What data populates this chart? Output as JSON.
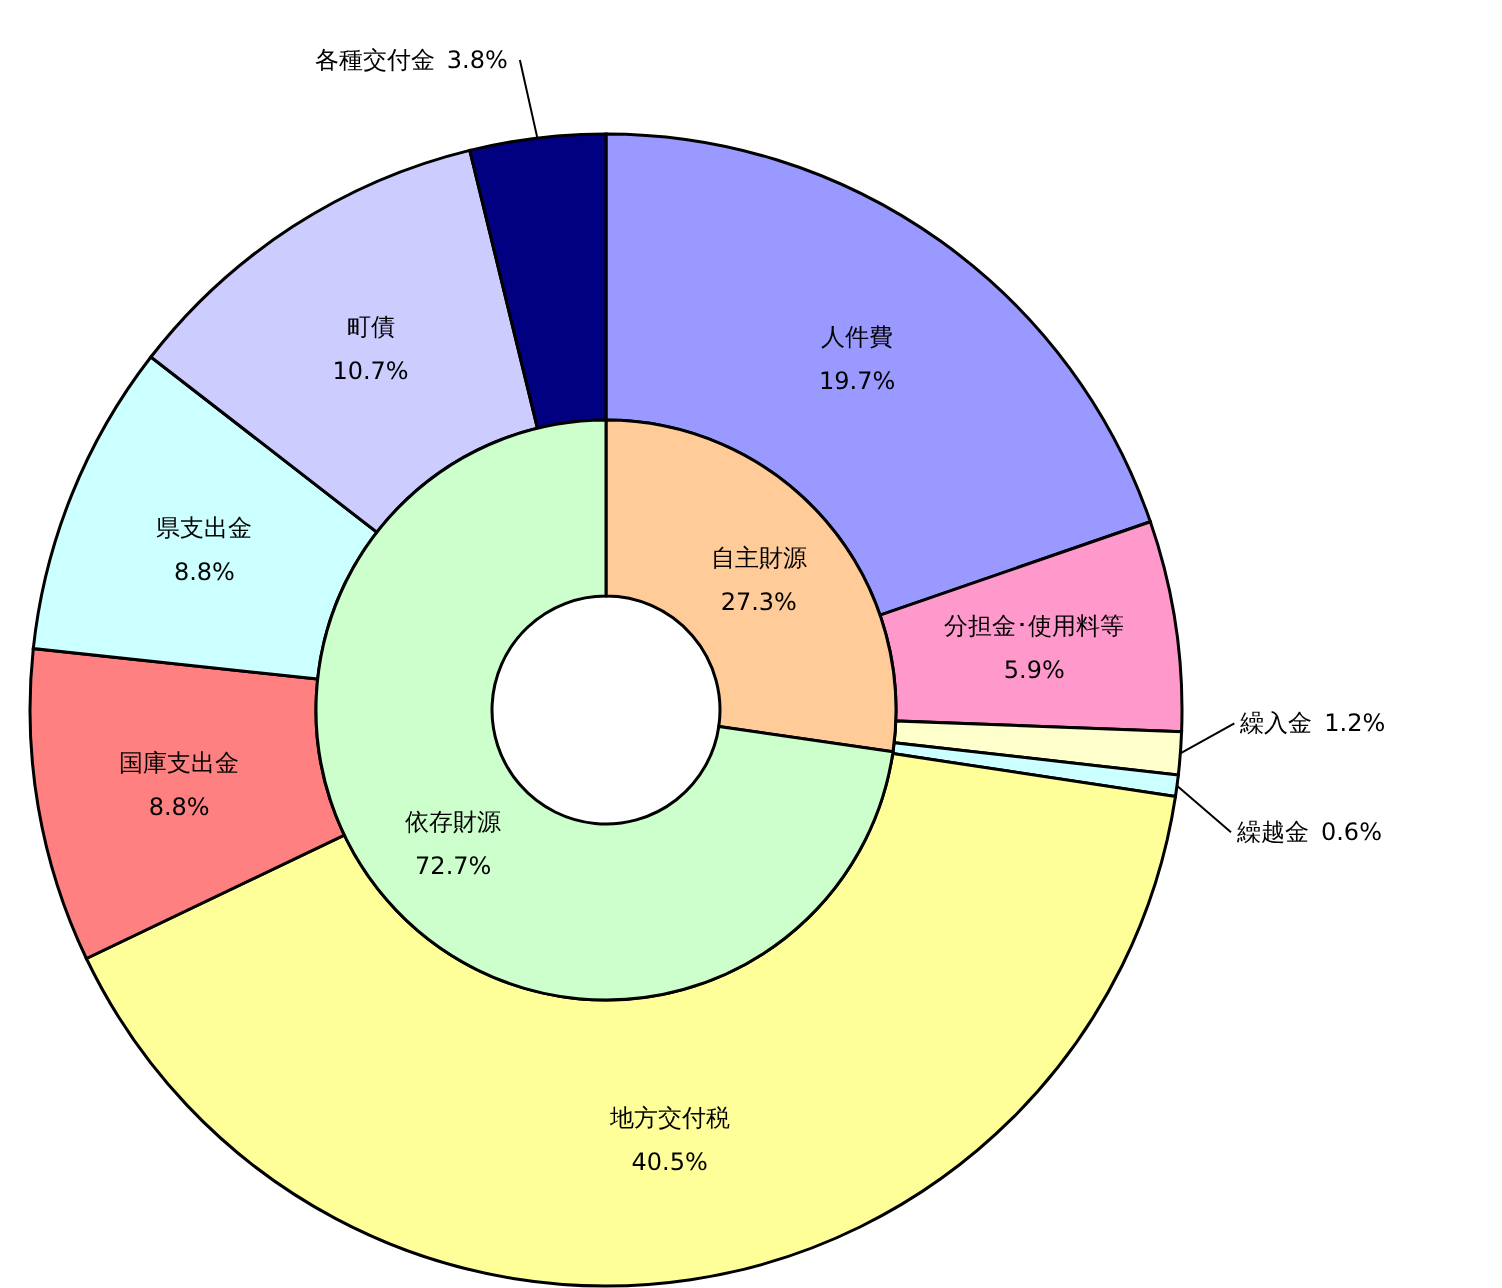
{
  "chart_data": [
    {
      "type": "donut",
      "categories": [
        "人件費",
        "分担金･使用料等",
        "繰入金",
        "繰越金",
        "地方交付税",
        "国庫支出金",
        "県支出金",
        "町債",
        "各種交付金"
      ],
      "values": [
        19.7,
        5.9,
        1.2,
        0.6,
        40.5,
        8.8,
        8.8,
        10.7,
        3.8
      ],
      "value_labels": [
        "19.7%",
        "5.9%",
        "1.2%",
        "0.6%",
        "40.5%",
        "8.8%",
        "8.8%",
        "10.7%",
        "3.8%"
      ],
      "colors": [
        "#9999ff",
        "#ff99cc",
        "#ffffcc",
        "#ccffff",
        "#ffff99",
        "#ff8080",
        "#ccffff",
        "#ccccff",
        "#000080"
      ]
    },
    {
      "type": "donut",
      "categories": [
        "自主財源",
        "依存財源"
      ],
      "values": [
        27.3,
        72.7
      ],
      "value_labels": [
        "27.3%",
        "72.7%"
      ],
      "colors": [
        "#ffcc99",
        "#ccffcc"
      ]
    }
  ]
}
